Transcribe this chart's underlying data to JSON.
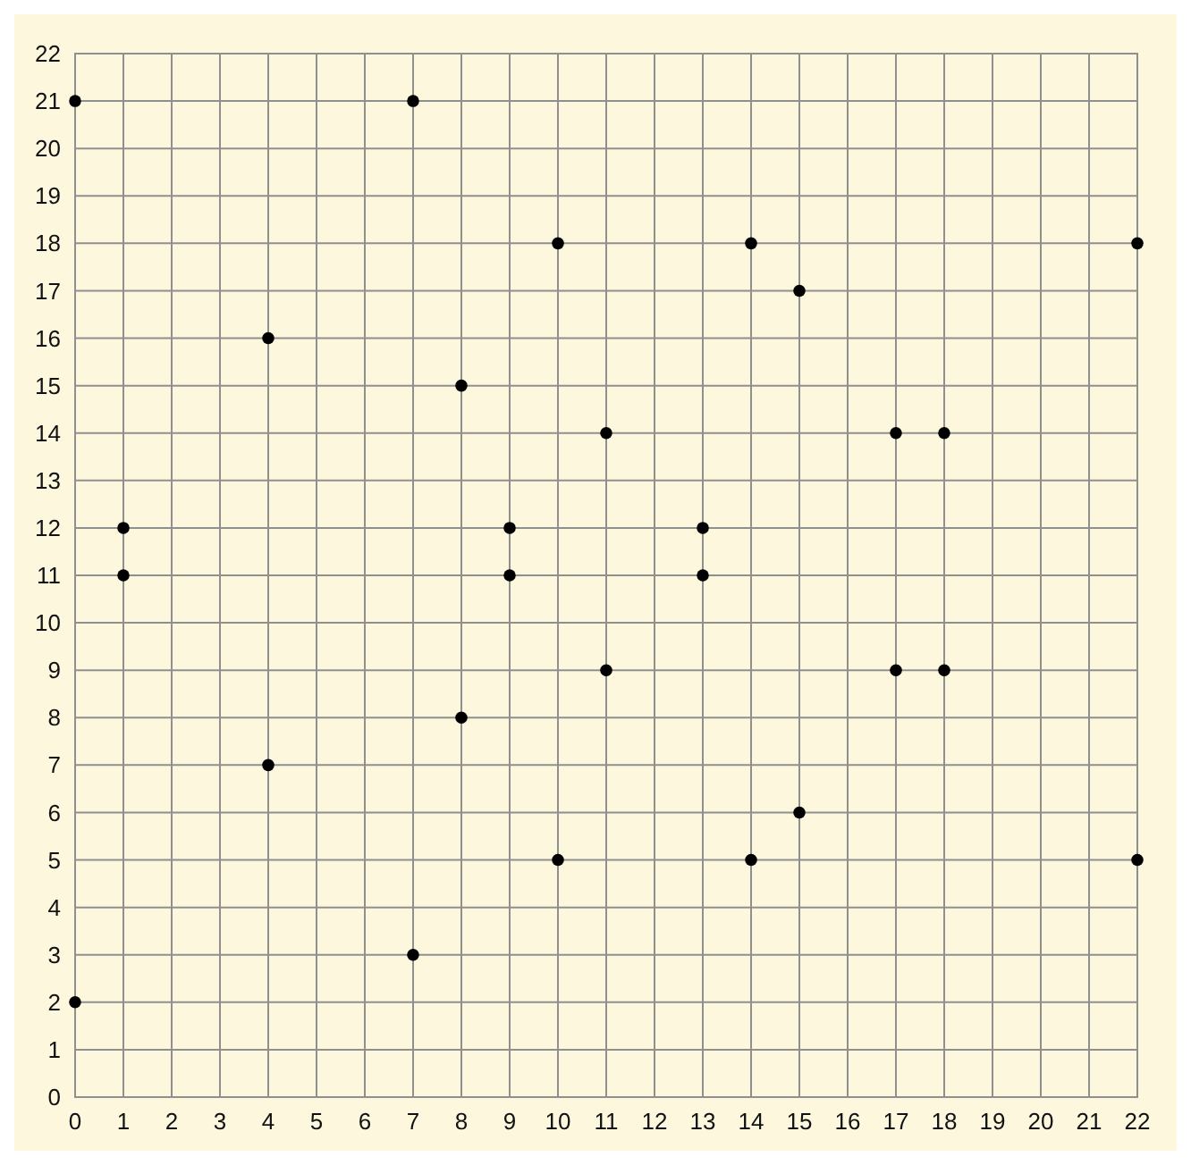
{
  "chart_data": {
    "type": "scatter",
    "xlim": [
      0,
      22
    ],
    "ylim": [
      0,
      22
    ],
    "xticks": [
      0,
      1,
      2,
      3,
      4,
      5,
      6,
      7,
      8,
      9,
      10,
      11,
      12,
      13,
      14,
      15,
      16,
      17,
      18,
      19,
      20,
      21,
      22
    ],
    "yticks": [
      0,
      1,
      2,
      3,
      4,
      5,
      6,
      7,
      8,
      9,
      10,
      11,
      12,
      13,
      14,
      15,
      16,
      17,
      18,
      19,
      20,
      21,
      22
    ],
    "grid": true,
    "marker": "circle",
    "series": [
      {
        "color": "#000000",
        "x": [
          0,
          0,
          1,
          1,
          4,
          4,
          7,
          7,
          8,
          8,
          9,
          9,
          10,
          10,
          11,
          11,
          13,
          13,
          14,
          14,
          15,
          15,
          17,
          17,
          18,
          18,
          22,
          22
        ],
        "values": [
          21,
          2,
          12,
          11,
          16,
          7,
          21,
          3,
          15,
          8,
          12,
          11,
          18,
          5,
          14,
          9,
          12,
          11,
          18,
          5,
          17,
          6,
          14,
          9,
          14,
          9,
          18,
          5
        ]
      }
    ]
  }
}
